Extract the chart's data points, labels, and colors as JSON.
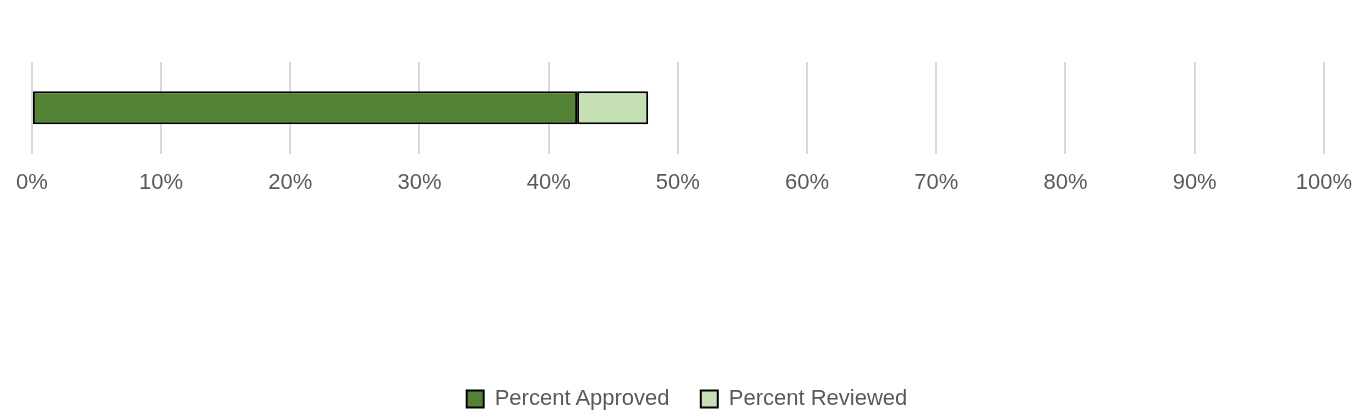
{
  "chart_data": {
    "type": "bar",
    "orientation": "horizontal",
    "stacked": true,
    "categories": [
      null
    ],
    "series": [
      {
        "name": "Percent Approved",
        "color": "#548235",
        "values": [
          42.2
        ]
      },
      {
        "name": "Percent Reviewed",
        "color": "#c5e0b4",
        "values": [
          5.5
        ]
      }
    ],
    "xlim": [
      0,
      100
    ],
    "xticks": [
      {
        "value": 0,
        "label": "0%"
      },
      {
        "value": 10,
        "label": "10%"
      },
      {
        "value": 20,
        "label": "20%"
      },
      {
        "value": 30,
        "label": "30%"
      },
      {
        "value": 40,
        "label": "40%"
      },
      {
        "value": 50,
        "label": "50%"
      },
      {
        "value": 60,
        "label": "60%"
      },
      {
        "value": 70,
        "label": "70%"
      },
      {
        "value": 80,
        "label": "80%"
      },
      {
        "value": 90,
        "label": "90%"
      },
      {
        "value": 100,
        "label": "100%"
      }
    ],
    "grid": "x",
    "legend": "bottom"
  }
}
